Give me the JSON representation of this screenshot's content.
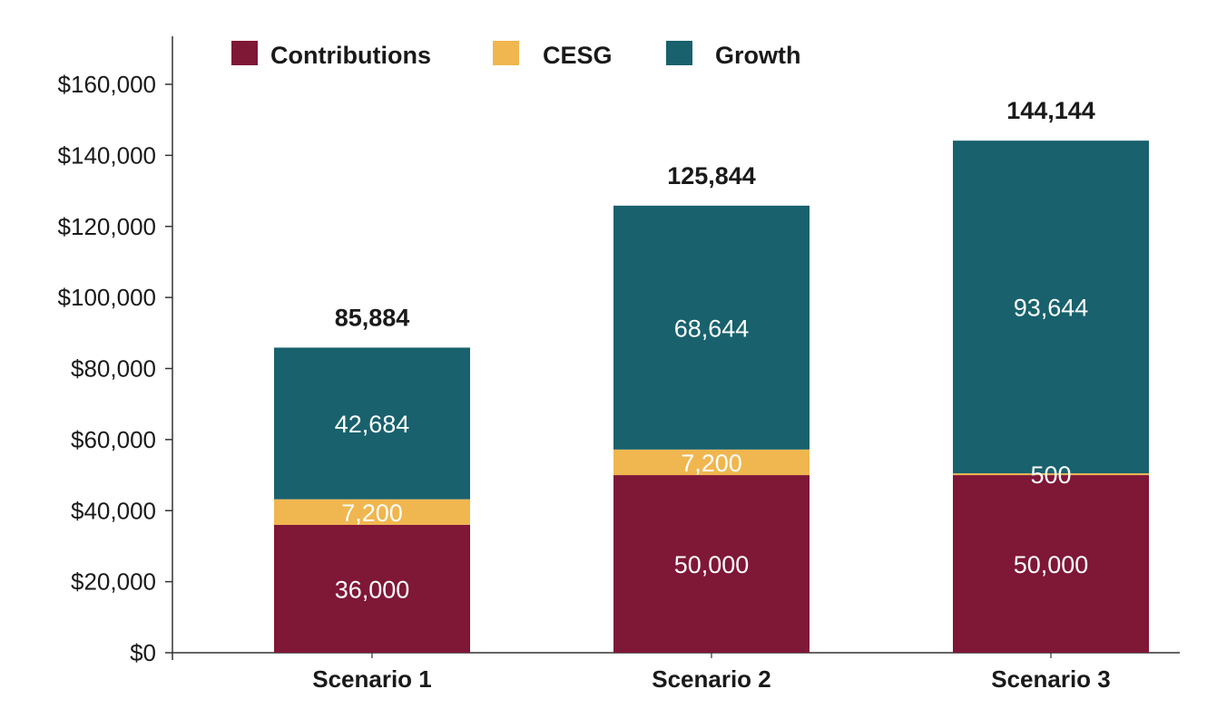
{
  "chart_data": {
    "type": "bar",
    "stacked": true,
    "categories": [
      "Scenario 1",
      "Scenario 2",
      "Scenario 3"
    ],
    "series": [
      {
        "name": "Contributions",
        "color": "#7f1737",
        "values": [
          36000,
          50000,
          50000
        ],
        "labels": [
          "36,000",
          "50,000",
          "50,000"
        ]
      },
      {
        "name": "CESG",
        "color": "#f0b64f",
        "values": [
          7200,
          7200,
          500
        ],
        "labels": [
          "7,200",
          "7,200",
          "500"
        ]
      },
      {
        "name": "Growth",
        "color": "#18616d",
        "values": [
          42684,
          68644,
          93644
        ],
        "labels": [
          "42,684",
          "68,644",
          "93,644"
        ]
      }
    ],
    "totals": [
      "85,884",
      "125,844",
      "144,144"
    ],
    "y_ticks": [
      "$0",
      "$20,000",
      "$40,000",
      "$60,000",
      "$80,000",
      "$100,000",
      "$120,000",
      "$140,000",
      "$160,000"
    ],
    "ylim": [
      0,
      172000
    ],
    "title": "",
    "xlabel": "",
    "ylabel": "",
    "legend_position": "top-left",
    "grid": false
  }
}
